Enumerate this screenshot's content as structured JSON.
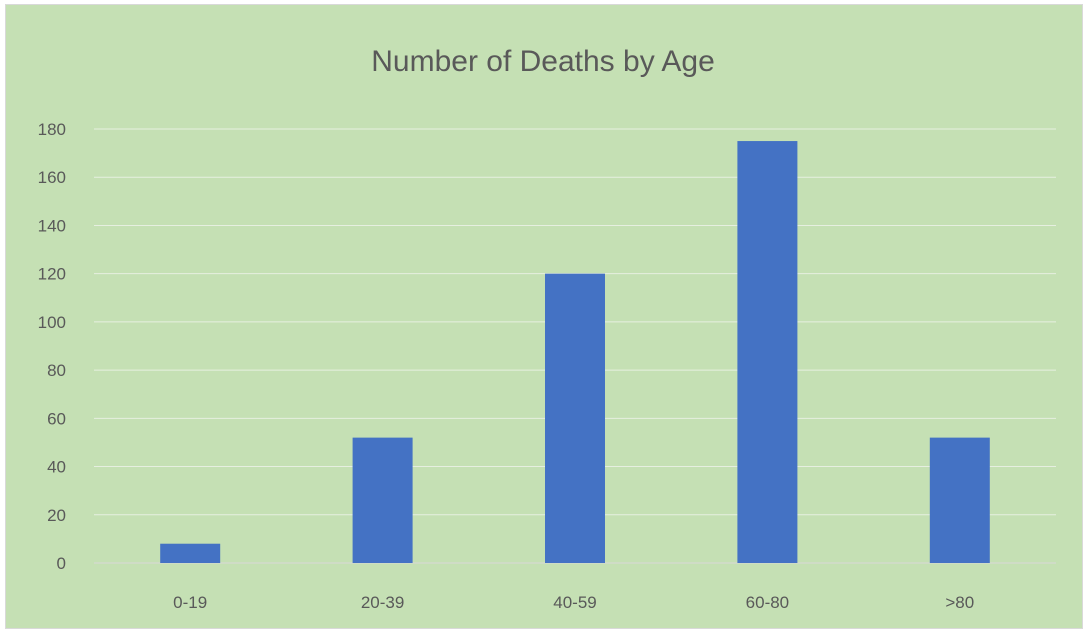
{
  "chart_data": {
    "type": "bar",
    "title": "Number of Deaths by Age",
    "categories": [
      "0-19",
      "20-39",
      "40-59",
      "60-80",
      ">80"
    ],
    "values": [
      8,
      52,
      120,
      175,
      52
    ],
    "ylim": [
      0,
      180
    ],
    "yticks": [
      0,
      20,
      40,
      60,
      80,
      100,
      120,
      140,
      160,
      180
    ],
    "grid": true,
    "legend": "none",
    "colors": {
      "bar": "#4472c4",
      "background": "#c5e0b4",
      "text": "#595959"
    }
  }
}
